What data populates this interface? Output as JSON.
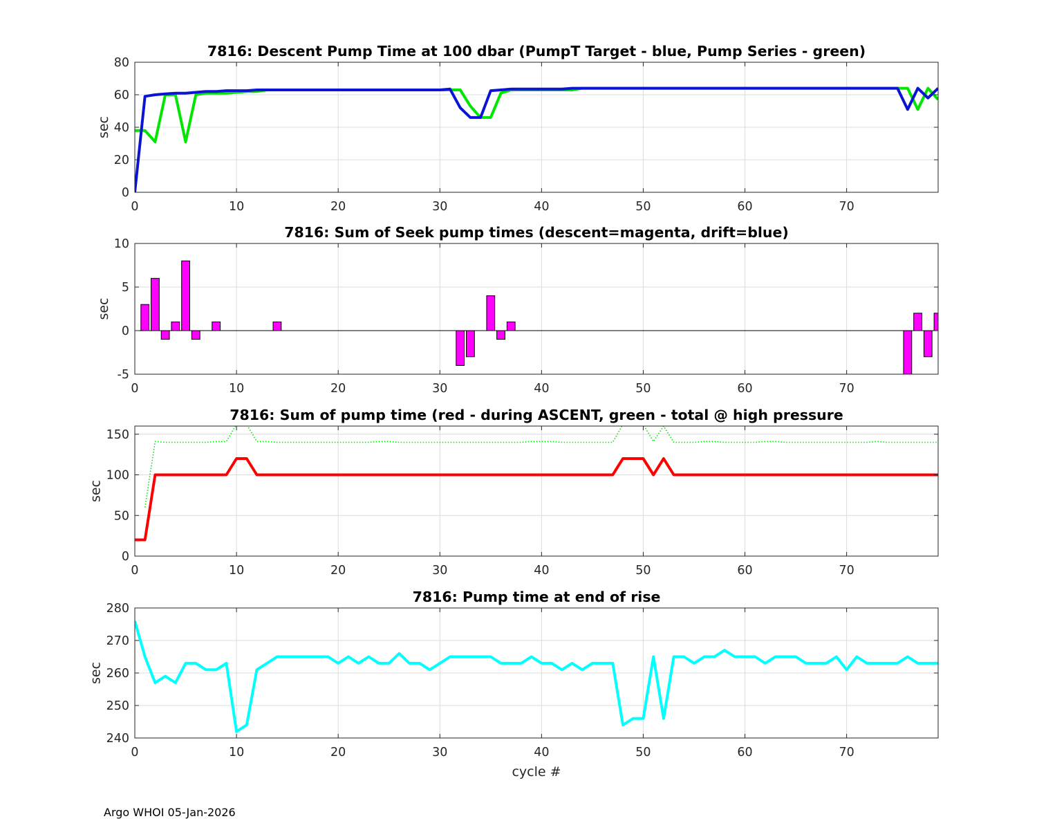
{
  "footer": "Argo WHOI 05-Jan-2026",
  "chart_data": [
    {
      "type": "line",
      "title": "7816: Descent Pump Time at 100 dbar (PumpT Target - blue, Pump Series - green)",
      "xlabel": "",
      "ylabel": "sec",
      "xlim": [
        0,
        79
      ],
      "ylim": [
        0,
        80
      ],
      "xticks": [
        0,
        10,
        20,
        30,
        40,
        50,
        60,
        70
      ],
      "yticks": [
        0,
        20,
        40,
        60,
        80
      ],
      "grid": true,
      "series": [
        {
          "color": "#00e600",
          "style": "solid",
          "width": 4,
          "x": [
            0,
            1,
            2,
            3,
            4,
            5,
            6,
            7,
            8,
            9,
            10,
            11,
            12,
            13,
            14,
            15,
            16,
            17,
            18,
            19,
            20,
            21,
            22,
            23,
            24,
            25,
            26,
            27,
            28,
            29,
            30,
            31,
            32,
            33,
            34,
            35,
            36,
            37,
            38,
            39,
            40,
            41,
            42,
            43,
            44,
            45,
            46,
            47,
            48,
            49,
            50,
            51,
            52,
            53,
            54,
            55,
            56,
            57,
            58,
            59,
            60,
            61,
            62,
            63,
            64,
            65,
            66,
            67,
            68,
            69,
            70,
            71,
            72,
            73,
            74,
            75,
            76,
            77,
            78,
            79
          ],
          "y": [
            38,
            38,
            31,
            60,
            60,
            31,
            60,
            61,
            61,
            61,
            61.5,
            62,
            62,
            63,
            63,
            63,
            63,
            63,
            63,
            63,
            63,
            63,
            63,
            63,
            63,
            63,
            63,
            63,
            63,
            63,
            63,
            63,
            63,
            53,
            46,
            46,
            61,
            63,
            63,
            63,
            63,
            63,
            63,
            63,
            64,
            64,
            64,
            64,
            64,
            64,
            64,
            64,
            64,
            64,
            64,
            64,
            64,
            64,
            64,
            64,
            64,
            64,
            64,
            64,
            64,
            64,
            64,
            64,
            64,
            64,
            64,
            64,
            64,
            64,
            64,
            64,
            64,
            51,
            64,
            57
          ]
        },
        {
          "color": "#0a14d2",
          "style": "solid",
          "width": 4,
          "x": [
            0,
            1,
            2,
            3,
            4,
            5,
            6,
            7,
            8,
            9,
            10,
            11,
            12,
            13,
            14,
            15,
            16,
            17,
            18,
            19,
            20,
            21,
            22,
            23,
            24,
            25,
            26,
            27,
            28,
            29,
            30,
            31,
            32,
            33,
            34,
            35,
            36,
            37,
            38,
            39,
            40,
            41,
            42,
            43,
            44,
            45,
            46,
            47,
            48,
            49,
            50,
            51,
            52,
            53,
            54,
            55,
            56,
            57,
            58,
            59,
            60,
            61,
            62,
            63,
            64,
            65,
            66,
            67,
            68,
            69,
            70,
            71,
            72,
            73,
            74,
            75,
            76,
            77,
            78,
            79
          ],
          "y": [
            0,
            59,
            60,
            60.5,
            61,
            61,
            61.5,
            62,
            62,
            62.5,
            62.5,
            62.5,
            63,
            63,
            63,
            63,
            63,
            63,
            63,
            63,
            63,
            63,
            63,
            63,
            63,
            63,
            63,
            63,
            63,
            63,
            63,
            63.5,
            52,
            46,
            46,
            62.5,
            63,
            63.5,
            63.5,
            63.5,
            63.5,
            63.5,
            63.5,
            64,
            64,
            64,
            64,
            64,
            64,
            64,
            64,
            64,
            64,
            64,
            64,
            64,
            64,
            64,
            64,
            64,
            64,
            64,
            64,
            64,
            64,
            64,
            64,
            64,
            64,
            64,
            64,
            64,
            64,
            64,
            64,
            64,
            51,
            64,
            58,
            64
          ]
        }
      ]
    },
    {
      "type": "bar",
      "title": "7816: Sum of Seek pump times (descent=magenta, drift=blue)",
      "xlabel": "",
      "ylabel": "sec",
      "xlim": [
        0,
        79
      ],
      "ylim": [
        -5,
        10
      ],
      "xticks": [
        0,
        10,
        20,
        30,
        40,
        50,
        60,
        70
      ],
      "yticks": [
        -5,
        0,
        5,
        10
      ],
      "grid": true,
      "bar_width": 0.8,
      "series": [
        {
          "color": "#ff00ff",
          "x": [
            1,
            2,
            3,
            4,
            5,
            6,
            8,
            14,
            32,
            33,
            35,
            36,
            37,
            76,
            77,
            78,
            79
          ],
          "values": [
            3,
            6,
            -1,
            1,
            8,
            -1,
            1,
            1,
            -4,
            -3,
            4,
            -1,
            1,
            -5,
            2,
            -3,
            2
          ]
        }
      ]
    },
    {
      "type": "line",
      "title": "7816: Sum of pump time (red - during ASCENT, green - total @ high pressure",
      "xlabel": "",
      "ylabel": "sec",
      "xlim": [
        0,
        79
      ],
      "ylim": [
        0,
        160
      ],
      "xticks": [
        0,
        10,
        20,
        30,
        40,
        50,
        60,
        70
      ],
      "yticks": [
        0,
        50,
        100,
        150
      ],
      "grid": true,
      "series": [
        {
          "color": "#00e600",
          "style": "dotted",
          "width": 2,
          "x": [
            1,
            2,
            3,
            4,
            5,
            6,
            7,
            8,
            9,
            10,
            11,
            12,
            13,
            14,
            15,
            16,
            17,
            18,
            19,
            20,
            21,
            22,
            23,
            24,
            25,
            26,
            27,
            28,
            29,
            30,
            31,
            32,
            33,
            34,
            35,
            36,
            37,
            38,
            39,
            40,
            41,
            42,
            43,
            44,
            45,
            46,
            47,
            48,
            49,
            50,
            51,
            52,
            53,
            54,
            55,
            56,
            57,
            58,
            59,
            60,
            61,
            62,
            63,
            64,
            65,
            66,
            67,
            68,
            69,
            70,
            71,
            72,
            73,
            74,
            75,
            76,
            77,
            78,
            79
          ],
          "y": [
            60,
            141,
            140,
            140,
            140,
            140,
            140,
            141,
            141,
            162,
            162,
            141,
            141,
            140,
            140,
            140,
            140,
            140,
            140,
            140,
            140,
            140,
            140,
            141,
            141,
            140,
            140,
            140,
            140,
            140,
            140,
            140,
            140,
            140,
            140,
            140,
            140,
            140,
            141,
            141,
            141,
            140,
            140,
            140,
            140,
            140,
            140,
            162,
            162,
            162,
            141,
            160,
            140,
            140,
            140,
            141,
            141,
            140,
            140,
            140,
            140,
            141,
            141,
            140,
            140,
            140,
            140,
            140,
            140,
            140,
            140,
            140,
            141,
            140,
            140,
            140,
            140,
            140,
            140
          ]
        },
        {
          "color": "#ff0000",
          "style": "solid",
          "width": 4,
          "x": [
            0,
            1,
            2,
            3,
            4,
            5,
            6,
            7,
            8,
            9,
            10,
            11,
            12,
            13,
            14,
            15,
            16,
            17,
            18,
            19,
            20,
            21,
            22,
            23,
            24,
            25,
            26,
            27,
            28,
            29,
            30,
            31,
            32,
            33,
            34,
            35,
            36,
            37,
            38,
            39,
            40,
            41,
            42,
            43,
            44,
            45,
            46,
            47,
            48,
            49,
            50,
            51,
            52,
            53,
            54,
            55,
            56,
            57,
            58,
            59,
            60,
            61,
            62,
            63,
            64,
            65,
            66,
            67,
            68,
            69,
            70,
            71,
            72,
            73,
            74,
            75,
            76,
            77,
            78,
            79
          ],
          "y": [
            20,
            20,
            100,
            100,
            100,
            100,
            100,
            100,
            100,
            100,
            120,
            120,
            100,
            100,
            100,
            100,
            100,
            100,
            100,
            100,
            100,
            100,
            100,
            100,
            100,
            100,
            100,
            100,
            100,
            100,
            100,
            100,
            100,
            100,
            100,
            100,
            100,
            100,
            100,
            100,
            100,
            100,
            100,
            100,
            100,
            100,
            100,
            100,
            120,
            120,
            120,
            100,
            120,
            100,
            100,
            100,
            100,
            100,
            100,
            100,
            100,
            100,
            100,
            100,
            100,
            100,
            100,
            100,
            100,
            100,
            100,
            100,
            100,
            100,
            100,
            100,
            100,
            100,
            100,
            100
          ]
        }
      ]
    },
    {
      "type": "line",
      "title": "7816: Pump time at end of rise",
      "xlabel": "cycle #",
      "ylabel": "sec",
      "xlim": [
        0,
        79
      ],
      "ylim": [
        240,
        280
      ],
      "xticks": [
        0,
        10,
        20,
        30,
        40,
        50,
        60,
        70
      ],
      "yticks": [
        240,
        250,
        260,
        270,
        280
      ],
      "grid": true,
      "series": [
        {
          "color": "#00ffff",
          "style": "solid",
          "width": 4,
          "x": [
            0,
            1,
            2,
            3,
            4,
            5,
            6,
            7,
            8,
            9,
            10,
            11,
            12,
            13,
            14,
            15,
            16,
            17,
            18,
            19,
            20,
            21,
            22,
            23,
            24,
            25,
            26,
            27,
            28,
            29,
            30,
            31,
            32,
            33,
            34,
            35,
            36,
            37,
            38,
            39,
            40,
            41,
            42,
            43,
            44,
            45,
            46,
            47,
            48,
            49,
            50,
            51,
            52,
            53,
            54,
            55,
            56,
            57,
            58,
            59,
            60,
            61,
            62,
            63,
            64,
            65,
            66,
            67,
            68,
            69,
            70,
            71,
            72,
            73,
            74,
            75,
            76,
            77,
            78,
            79
          ],
          "y": [
            276,
            265,
            257,
            259,
            257,
            263,
            263,
            261,
            261,
            263,
            242,
            244,
            261,
            263,
            265,
            265,
            265,
            265,
            265,
            265,
            263,
            265,
            263,
            265,
            263,
            263,
            266,
            263,
            263,
            261,
            263,
            265,
            265,
            265,
            265,
            265,
            263,
            263,
            263,
            265,
            263,
            263,
            261,
            263,
            261,
            263,
            263,
            263,
            244,
            246,
            246,
            265,
            246,
            265,
            265,
            263,
            265,
            265,
            267,
            265,
            265,
            265,
            263,
            265,
            265,
            265,
            263,
            263,
            263,
            265,
            261,
            265,
            263,
            263,
            263,
            263,
            265,
            263,
            263,
            263
          ]
        }
      ]
    }
  ]
}
